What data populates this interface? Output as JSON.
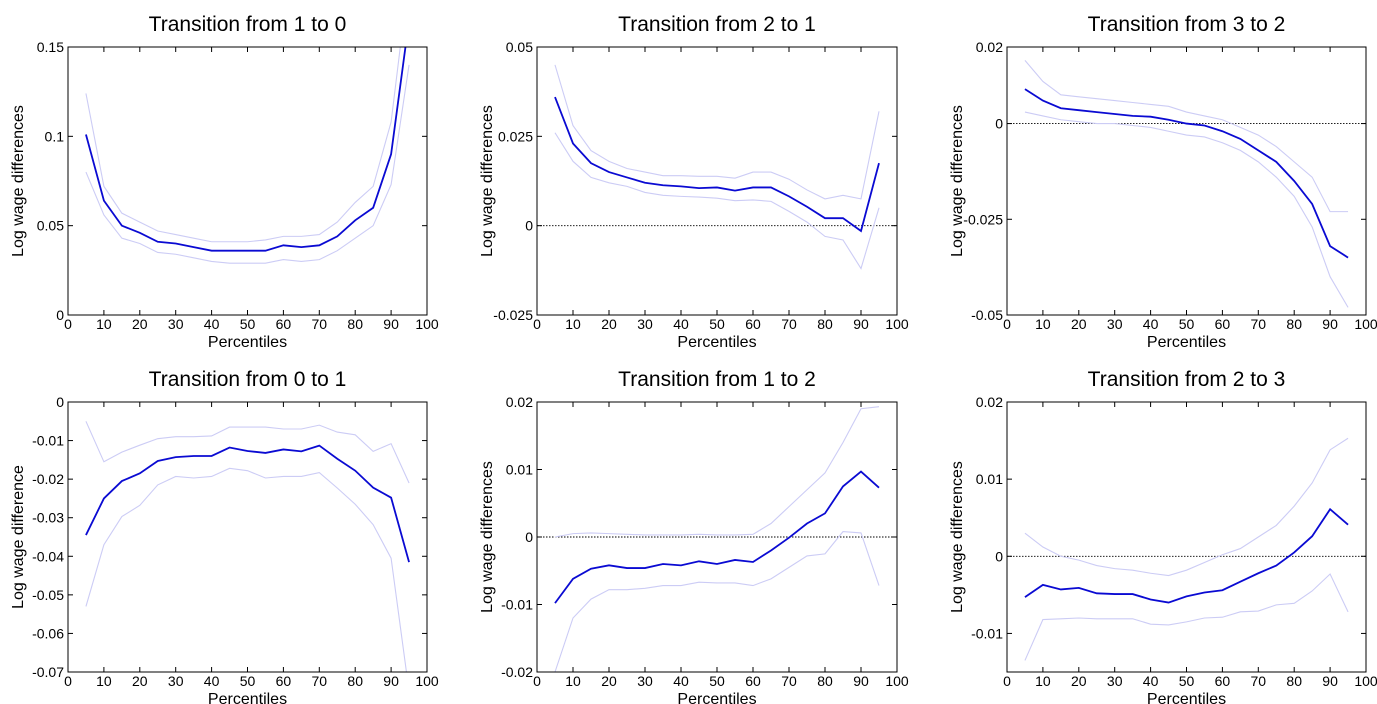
{
  "chart_data": [
    {
      "type": "line",
      "title": "Transition from 1 to 0",
      "xlabel": "Percentiles",
      "ylabel": "Log wage differences",
      "x": [
        5,
        10,
        15,
        20,
        25,
        30,
        35,
        40,
        45,
        50,
        55,
        60,
        65,
        70,
        75,
        80,
        85,
        90,
        95
      ],
      "xlim": [
        0,
        100
      ],
      "xticks": [
        0,
        10,
        20,
        30,
        40,
        50,
        60,
        70,
        80,
        90,
        100
      ],
      "ylim": [
        0,
        0.15
      ],
      "yticks": [
        0,
        0.05,
        0.1,
        0.15
      ],
      "series": [
        {
          "color": "#ccccf5",
          "values": [
            0.124,
            0.072,
            0.057,
            0.052,
            0.047,
            0.045,
            0.043,
            0.041,
            0.041,
            0.041,
            0.042,
            0.044,
            0.044,
            0.045,
            0.052,
            0.063,
            0.072,
            0.108,
            0.19
          ]
        },
        {
          "color": "#ccccf5",
          "values": [
            0.08,
            0.056,
            0.043,
            0.04,
            0.035,
            0.034,
            0.032,
            0.03,
            0.029,
            0.029,
            0.029,
            0.031,
            0.03,
            0.031,
            0.036,
            0.043,
            0.05,
            0.073,
            0.14
          ]
        },
        {
          "color": "#0a0ad2",
          "values": [
            0.101,
            0.064,
            0.05,
            0.046,
            0.041,
            0.04,
            0.038,
            0.036,
            0.036,
            0.036,
            0.036,
            0.039,
            0.038,
            0.039,
            0.044,
            0.053,
            0.06,
            0.09,
            0.165
          ]
        }
      ]
    },
    {
      "type": "line",
      "title": "Transition from 2 to 1",
      "xlabel": "Percentiles",
      "ylabel": "Log wage differences",
      "x": [
        5,
        10,
        15,
        20,
        25,
        30,
        35,
        40,
        45,
        50,
        55,
        60,
        65,
        70,
        75,
        80,
        85,
        90,
        95
      ],
      "xlim": [
        0,
        100
      ],
      "xticks": [
        0,
        10,
        20,
        30,
        40,
        50,
        60,
        70,
        80,
        90,
        100
      ],
      "ylim": [
        -0.025,
        0.05
      ],
      "yticks": [
        -0.025,
        0,
        0.025,
        0.05
      ],
      "reference_line": 0,
      "series": [
        {
          "color": "#ccccf5",
          "values": [
            0.045,
            0.028,
            0.021,
            0.018,
            0.016,
            0.015,
            0.014,
            0.014,
            0.0138,
            0.0138,
            0.0133,
            0.015,
            0.015,
            0.013,
            0.01,
            0.0075,
            0.0085,
            0.0075,
            0.032
          ]
        },
        {
          "color": "#ccccf5",
          "values": [
            0.026,
            0.018,
            0.0135,
            0.012,
            0.011,
            0.0093,
            0.0085,
            0.0082,
            0.008,
            0.0077,
            0.007,
            0.0072,
            0.0068,
            0.004,
            0.001,
            -0.003,
            -0.004,
            -0.012,
            0.005
          ]
        },
        {
          "color": "#0a0ad2",
          "values": [
            0.036,
            0.023,
            0.0175,
            0.015,
            0.0135,
            0.012,
            0.0113,
            0.011,
            0.0105,
            0.0107,
            0.0098,
            0.0107,
            0.0107,
            0.0082,
            0.0053,
            0.0021,
            0.0021,
            -0.0015,
            0.0175
          ]
        }
      ]
    },
    {
      "type": "line",
      "title": "Transition from 3 to 2",
      "xlabel": "Percentiles",
      "ylabel": "Log wage differences",
      "x": [
        5,
        10,
        15,
        20,
        25,
        30,
        35,
        40,
        45,
        50,
        55,
        60,
        65,
        70,
        75,
        80,
        85,
        90,
        95
      ],
      "xlim": [
        0,
        100
      ],
      "xticks": [
        0,
        10,
        20,
        30,
        40,
        50,
        60,
        70,
        80,
        90,
        100
      ],
      "ylim": [
        -0.05,
        0.02
      ],
      "yticks": [
        -0.05,
        -0.025,
        0,
        0.02
      ],
      "reference_line": 0,
      "series": [
        {
          "color": "#ccccf5",
          "values": [
            0.0165,
            0.011,
            0.0075,
            0.007,
            0.0065,
            0.006,
            0.0055,
            0.005,
            0.0045,
            0.003,
            0.002,
            0.001,
            -0.001,
            -0.003,
            -0.006,
            -0.01,
            -0.014,
            -0.023,
            -0.023
          ]
        },
        {
          "color": "#ccccf5",
          "values": [
            0.003,
            0.002,
            0.001,
            0.0005,
            0,
            0,
            -0.0005,
            -0.001,
            -0.002,
            -0.003,
            -0.0035,
            -0.005,
            -0.007,
            -0.01,
            -0.014,
            -0.019,
            -0.027,
            -0.04,
            -0.048
          ]
        },
        {
          "color": "#0a0ad2",
          "values": [
            0.009,
            0.006,
            0.004,
            0.0035,
            0.003,
            0.0025,
            0.002,
            0.0018,
            0.001,
            0,
            -0.0005,
            -0.002,
            -0.004,
            -0.007,
            -0.01,
            -0.015,
            -0.021,
            -0.032,
            -0.035
          ]
        }
      ]
    },
    {
      "type": "line",
      "title": "Transition from 0 to 1",
      "xlabel": "Percentiles",
      "ylabel": "Log wage difference",
      "x": [
        5,
        10,
        15,
        20,
        25,
        30,
        35,
        40,
        45,
        50,
        55,
        60,
        65,
        70,
        75,
        80,
        85,
        90,
        95
      ],
      "xlim": [
        0,
        100
      ],
      "xticks": [
        0,
        10,
        20,
        30,
        40,
        50,
        60,
        70,
        80,
        90,
        100
      ],
      "ylim": [
        -0.07,
        0
      ],
      "yticks": [
        -0.07,
        -0.06,
        -0.05,
        -0.04,
        -0.03,
        -0.02,
        -0.01,
        0
      ],
      "series": [
        {
          "color": "#ccccf5",
          "values": [
            -0.005,
            -0.0155,
            -0.013,
            -0.0112,
            -0.0095,
            -0.009,
            -0.009,
            -0.0088,
            -0.0065,
            -0.0065,
            -0.0065,
            -0.007,
            -0.007,
            -0.006,
            -0.0078,
            -0.0085,
            -0.0128,
            -0.0108,
            -0.021
          ]
        },
        {
          "color": "#ccccf5",
          "values": [
            -0.053,
            -0.037,
            -0.0297,
            -0.0268,
            -0.0215,
            -0.0193,
            -0.0197,
            -0.0193,
            -0.0172,
            -0.0178,
            -0.0197,
            -0.0193,
            -0.0193,
            -0.0183,
            -0.0223,
            -0.0265,
            -0.0318,
            -0.0405,
            -0.075
          ]
        },
        {
          "color": "#0a0ad2",
          "values": [
            -0.0345,
            -0.025,
            -0.0205,
            -0.0185,
            -0.0153,
            -0.0143,
            -0.014,
            -0.014,
            -0.0118,
            -0.0127,
            -0.0132,
            -0.0123,
            -0.0128,
            -0.0113,
            -0.0147,
            -0.0178,
            -0.0222,
            -0.0248,
            -0.0415
          ]
        }
      ]
    },
    {
      "type": "line",
      "title": "Transition from 1 to 2",
      "xlabel": "Percentiles",
      "ylabel": "Log wage differences",
      "x": [
        5,
        10,
        15,
        20,
        25,
        30,
        35,
        40,
        45,
        50,
        55,
        60,
        65,
        70,
        75,
        80,
        85,
        90,
        95
      ],
      "xlim": [
        0,
        100
      ],
      "xticks": [
        0,
        10,
        20,
        30,
        40,
        50,
        60,
        70,
        80,
        90,
        100
      ],
      "ylim": [
        -0.02,
        0.02
      ],
      "yticks": [
        -0.02,
        -0.01,
        0,
        0.01,
        0.02
      ],
      "reference_line": 0,
      "series": [
        {
          "color": "#ccccf5",
          "values": [
            0.0,
            0.0005,
            0.0006,
            0.0005,
            0.0004,
            0.0003,
            0.0003,
            0.0003,
            0.0004,
            0.0003,
            0.0003,
            0.0004,
            0.002,
            0.0045,
            0.007,
            0.0095,
            0.014,
            0.019,
            0.0193
          ]
        },
        {
          "color": "#ccccf5",
          "values": [
            -0.02,
            -0.012,
            -0.0092,
            -0.0078,
            -0.0078,
            -0.0076,
            -0.0072,
            -0.0072,
            -0.0067,
            -0.0068,
            -0.0068,
            -0.0072,
            -0.0062,
            -0.0045,
            -0.0028,
            -0.0025,
            0.0008,
            0.0006,
            -0.0072
          ]
        },
        {
          "color": "#0a0ad2",
          "values": [
            -0.0098,
            -0.0062,
            -0.0047,
            -0.0042,
            -0.0046,
            -0.0046,
            -0.004,
            -0.0042,
            -0.0036,
            -0.004,
            -0.0034,
            -0.0037,
            -0.002,
            -0.0001,
            0.002,
            0.0035,
            0.0075,
            0.0097,
            0.0073
          ]
        }
      ]
    },
    {
      "type": "line",
      "title": "Transition from 2 to 3",
      "xlabel": "Percentiles",
      "ylabel": "Log wage differences",
      "x": [
        5,
        10,
        15,
        20,
        25,
        30,
        35,
        40,
        45,
        50,
        55,
        60,
        65,
        70,
        75,
        80,
        85,
        90,
        95
      ],
      "xlim": [
        0,
        100
      ],
      "xticks": [
        0,
        10,
        20,
        30,
        40,
        50,
        60,
        70,
        80,
        90,
        100
      ],
      "ylim": [
        -0.015,
        0.02
      ],
      "yticks": [
        -0.01,
        0,
        0.01,
        0.02
      ],
      "reference_line": 0,
      "series": [
        {
          "color": "#ccccf5",
          "values": [
            0.003,
            0.0012,
            0.0,
            -0.0005,
            -0.0012,
            -0.0016,
            -0.0018,
            -0.0022,
            -0.0025,
            -0.0018,
            -0.0008,
            0.0002,
            0.001,
            0.0025,
            0.004,
            0.0065,
            0.0095,
            0.0138,
            0.0153
          ]
        },
        {
          "color": "#ccccf5",
          "values": [
            -0.0135,
            -0.0082,
            -0.0081,
            -0.008,
            -0.0081,
            -0.0081,
            -0.0081,
            -0.0088,
            -0.0089,
            -0.0085,
            -0.008,
            -0.0079,
            -0.0072,
            -0.0071,
            -0.0063,
            -0.0061,
            -0.0045,
            -0.0023,
            -0.0072
          ]
        },
        {
          "color": "#0a0ad2",
          "values": [
            -0.0053,
            -0.0037,
            -0.0043,
            -0.0041,
            -0.0048,
            -0.0049,
            -0.0049,
            -0.0056,
            -0.006,
            -0.0052,
            -0.0047,
            -0.0044,
            -0.0033,
            -0.0022,
            -0.0012,
            0.0005,
            0.0026,
            0.0061,
            0.0041
          ]
        }
      ]
    }
  ]
}
